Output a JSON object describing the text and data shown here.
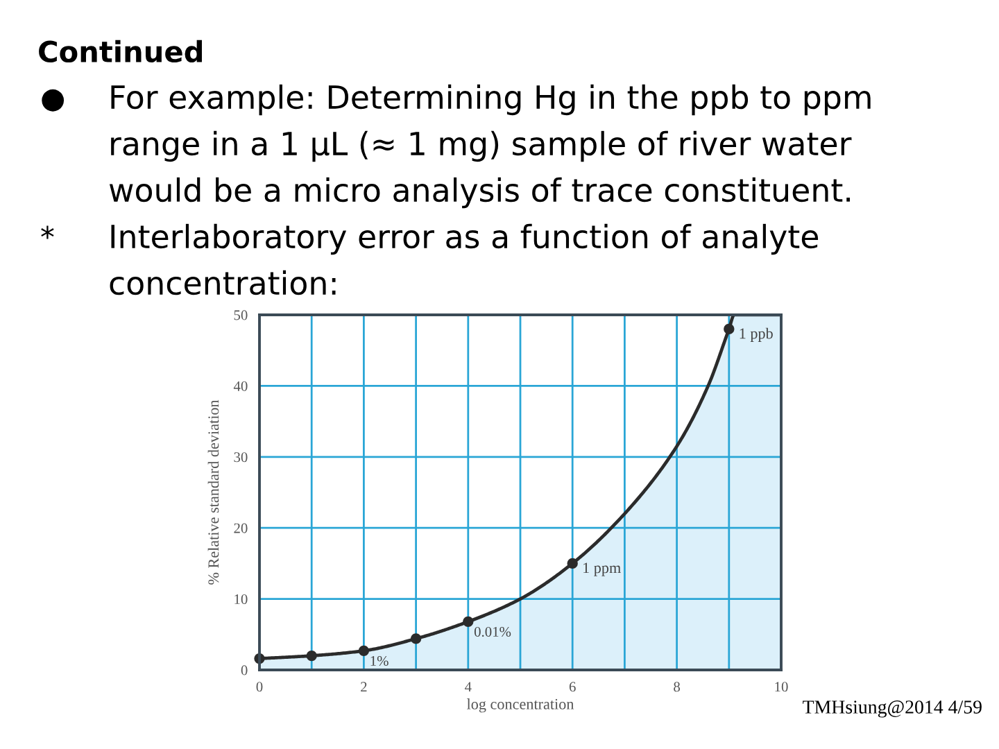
{
  "chart_data": {
    "type": "area",
    "title": "Continued",
    "annotations": [
      "●\tFor example: Determining Hg in the ppb to ppm\nrange in a 1 μL (≈ 1 mg) sample of river water\nwould be a micro analysis of trace constituent.",
      "*\tInterlaboratory error as a function of analyte\nconcentration:",
      {
        "text": "1%",
        "x": 2,
        "y": 2.7
      },
      {
        "text": "0.01%",
        "x": 4,
        "y": 6.8
      },
      {
        "text": "1 ppm",
        "x": 6,
        "y": 15
      },
      {
        "text": "1 ppb",
        "x": 9,
        "y": 48
      },
      "TMHsiung@2014 4/59"
    ],
    "xlabel": "log concentration",
    "ylabel": "% Relative standard deviation",
    "xlim": [
      0,
      10
    ],
    "xticks": [
      0,
      {
        "value": 1,
        "label": null
      },
      2,
      {
        "value": 3,
        "label": null
      },
      4,
      {
        "value": 5,
        "label": null
      },
      6,
      {
        "value": 7,
        "label": null
      },
      8,
      {
        "value": 9,
        "label": null
      },
      10
    ],
    "ylim": [
      0,
      50
    ],
    "yticks": [
      0,
      10,
      20,
      30,
      40,
      50
    ],
    "grid": true,
    "series": [
      {
        "color": "#dcf0fa",
        "line_style": "solid",
        "x": [
          0,
          1,
          2,
          3,
          4,
          5,
          6,
          7,
          8,
          8.6,
          9,
          9.1,
          10
        ],
        "values": [
          1.6,
          2,
          2.7,
          4.4,
          6.8,
          10,
          15,
          22,
          31.5,
          40,
          48,
          50,
          50
        ]
      },
      {
        "type": "scatter",
        "color": "#2b2b2b",
        "marker": "circle",
        "x": [
          0,
          1,
          2,
          3,
          4,
          6,
          9
        ],
        "values": [
          1.6,
          2,
          2.7,
          4.4,
          6.8,
          15,
          48
        ]
      }
    ]
  }
}
